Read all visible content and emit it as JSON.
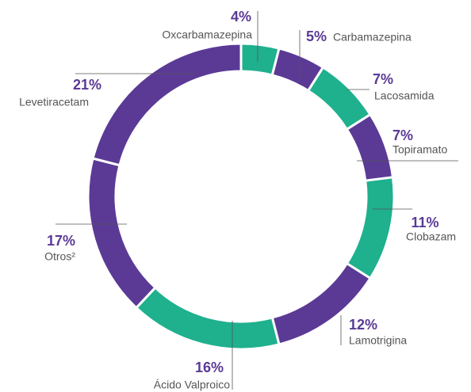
{
  "chart_data": {
    "type": "donut",
    "categories": [
      "Oxcarbamazepina",
      "Carbamazepina",
      "Lacosamida",
      "Topiramato",
      "Clobazam",
      "Lamotrigina",
      "Ácido Valproico",
      "Otros²",
      "Levetiracetam"
    ],
    "values": [
      4,
      5,
      7,
      7,
      11,
      12,
      16,
      17,
      21
    ],
    "value_labels": [
      "4%",
      "5%",
      "7%",
      "7%",
      "11%",
      "12%",
      "16%",
      "17%",
      "21%"
    ],
    "colors": [
      "#1fb08e",
      "#5b3a96",
      "#1fb08e",
      "#5b3a96",
      "#1fb08e",
      "#5b3a96",
      "#1fb08e",
      "#5b3a96",
      "#5b3a96"
    ]
  }
}
